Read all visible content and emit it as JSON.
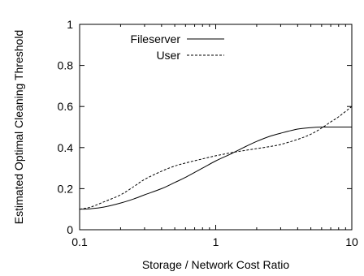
{
  "chart_data": {
    "type": "line",
    "title": "",
    "xlabel": "Storage / Network Cost Ratio",
    "ylabel": "Estimated Optimal Cleaning Threshold",
    "xscale": "log",
    "xlim": [
      0.1,
      10
    ],
    "ylim": [
      0,
      1
    ],
    "x_ticks": [
      {
        "value": 0.1,
        "label": "0.1"
      },
      {
        "value": 1,
        "label": "1"
      },
      {
        "value": 10,
        "label": "10"
      }
    ],
    "y_ticks": [
      {
        "value": 0,
        "label": "0"
      },
      {
        "value": 0.2,
        "label": "0.2"
      },
      {
        "value": 0.4,
        "label": "0.4"
      },
      {
        "value": 0.6,
        "label": "0.6"
      },
      {
        "value": 0.8,
        "label": "0.8"
      },
      {
        "value": 1,
        "label": "1"
      }
    ],
    "grid": false,
    "legend_position": "top-left",
    "series": [
      {
        "name": "Fileserver",
        "style": "solid",
        "color": "#000000",
        "x": [
          0.1,
          0.12,
          0.15,
          0.2,
          0.25,
          0.3,
          0.4,
          0.5,
          0.6,
          0.8,
          1,
          1.3,
          1.6,
          2,
          2.5,
          3,
          4,
          5,
          6,
          7,
          8,
          10
        ],
        "y": [
          0.1,
          0.102,
          0.11,
          0.13,
          0.15,
          0.17,
          0.2,
          0.23,
          0.255,
          0.3,
          0.335,
          0.37,
          0.4,
          0.43,
          0.455,
          0.47,
          0.49,
          0.497,
          0.5,
          0.5,
          0.5,
          0.5
        ]
      },
      {
        "name": "User",
        "style": "dashed",
        "color": "#000000",
        "x": [
          0.1,
          0.12,
          0.15,
          0.2,
          0.25,
          0.3,
          0.4,
          0.5,
          0.6,
          0.8,
          1,
          1.3,
          1.6,
          2,
          2.5,
          3,
          4,
          5,
          6,
          7,
          8,
          10
        ],
        "y": [
          0.1,
          0.11,
          0.135,
          0.17,
          0.21,
          0.245,
          0.285,
          0.31,
          0.325,
          0.345,
          0.36,
          0.375,
          0.385,
          0.395,
          0.405,
          0.415,
          0.44,
          0.465,
          0.495,
          0.525,
          0.55,
          0.6
        ]
      }
    ]
  }
}
